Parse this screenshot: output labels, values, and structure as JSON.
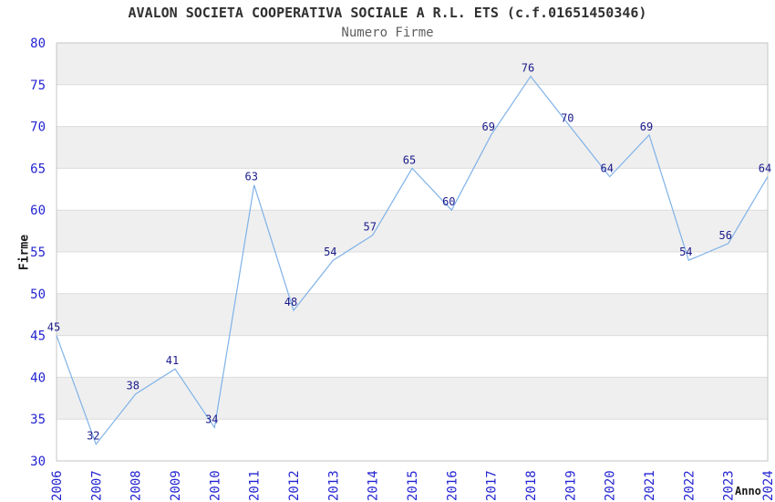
{
  "chart_data": {
    "type": "line",
    "title": "AVALON SOCIETA COOPERATIVA SOCIALE A R.L. ETS (c.f.01651450346)",
    "subtitle": "Numero Firme",
    "xlabel": "Anno",
    "ylabel": "Firme",
    "categories": [
      "2006",
      "2007",
      "2008",
      "2009",
      "2010",
      "2011",
      "2012",
      "2013",
      "2014",
      "2015",
      "2016",
      "2017",
      "2018",
      "2019",
      "2020",
      "2021",
      "2022",
      "2023",
      "2024"
    ],
    "values": [
      45,
      32,
      38,
      41,
      34,
      63,
      48,
      54,
      57,
      65,
      60,
      69,
      76,
      70,
      64,
      69,
      54,
      56,
      64
    ],
    "ylim": [
      30,
      80
    ],
    "ytick_step": 5,
    "data_labels_shown": true,
    "grid": "horizontal-bands",
    "legend": "none",
    "colors": {
      "line": "#7fb2e8",
      "data_label": "#1a1a8c",
      "tick_label": "#2424d2",
      "band_gray": "#efefef",
      "band_white": "#ffffff",
      "gridline": "#dcdcdc",
      "plot_border": "#c4c4c4",
      "title": "#303030",
      "subtitle": "#5f5f5f",
      "axis_label": "#1a1a1a"
    }
  }
}
